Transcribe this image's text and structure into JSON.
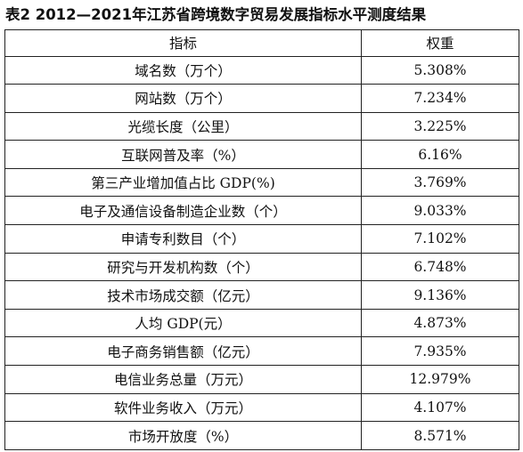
{
  "title": "表2  2012—2021年江苏省跨境数字贸易发展指标水平测度结果",
  "table": {
    "headers": [
      "指标",
      "权重"
    ],
    "rows": [
      [
        "域名数（万个）",
        "5.308%"
      ],
      [
        "网站数（万个）",
        "7.234%"
      ],
      [
        "光缆长度（公里）",
        "3.225%"
      ],
      [
        "互联网普及率（%）",
        "6.16%"
      ],
      [
        "第三产业增加值占比 GDP(%)",
        "3.769%"
      ],
      [
        "电子及通信设备制造企业数（个）",
        "9.033%"
      ],
      [
        "申请专利数目（个）",
        "7.102%"
      ],
      [
        "研究与开发机构数（个）",
        "6.748%"
      ],
      [
        "技术市场成交额（亿元）",
        "9.136%"
      ],
      [
        "人均 GDP(元）",
        "4.873%"
      ],
      [
        "电子商务销售额（亿元）",
        "7.935%"
      ],
      [
        "电信业务总量（万元）",
        "12.979%"
      ],
      [
        "软件业务收入（万元）",
        "4.107%"
      ],
      [
        "市场开放度（%）",
        "8.571%"
      ]
    ]
  }
}
